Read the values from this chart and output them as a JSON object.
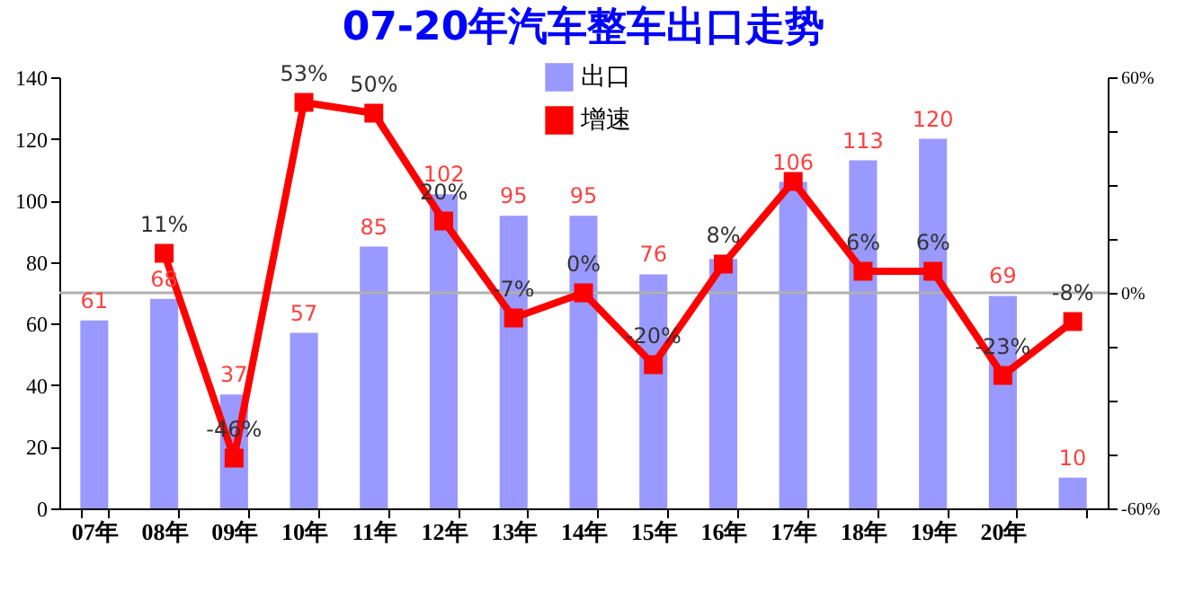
{
  "chart_data": {
    "type": "bar",
    "title": "07-20年汽车整车出口走势",
    "categories": [
      "07年",
      "08年",
      "09年",
      "10年",
      "11年",
      "12年",
      "13年",
      "14年",
      "15年",
      "16年",
      "17年",
      "18年",
      "19年",
      "20年",
      null
    ],
    "series": [
      {
        "name": "出口",
        "color": "#9999ff",
        "values": [
          61,
          68,
          37,
          57,
          85,
          102,
          95,
          95,
          76,
          81,
          106,
          113,
          120,
          69,
          10
        ],
        "value_labels": [
          "61",
          "68",
          "37",
          "57",
          "85",
          "102",
          "95",
          "95",
          "76",
          null,
          "106",
          "113",
          "120",
          "69",
          "10"
        ]
      },
      {
        "name": "增速",
        "type": "line",
        "axis": "y2",
        "color": "#ff0000",
        "marker": "square",
        "values": [
          null,
          11,
          -46,
          53,
          50,
          20,
          -7,
          0,
          -20,
          8,
          31,
          6,
          6,
          -23,
          -8
        ],
        "value_labels": [
          null,
          "11%",
          "-46%",
          "53%",
          "50%",
          "20%",
          "-7%",
          "0%",
          "-20%",
          "8%",
          null,
          "6%",
          "6%",
          "-23%",
          "-8%"
        ]
      }
    ],
    "ylim": [
      0,
      140
    ],
    "yticks": [
      0,
      20,
      40,
      60,
      80,
      100,
      120,
      140
    ],
    "y2lim": [
      -60,
      60
    ],
    "y2ticks": [
      {
        "value": -60,
        "label": "-60%"
      },
      {
        "value": -45,
        "label": null
      },
      {
        "value": -30,
        "label": null
      },
      {
        "value": -15,
        "label": null
      },
      {
        "value": 0,
        "label": "0%"
      },
      {
        "value": 15,
        "label": null
      },
      {
        "value": 30,
        "label": null
      },
      {
        "value": 45,
        "label": null
      },
      {
        "value": 60,
        "label": "60%"
      }
    ],
    "ref_lines": [
      {
        "axis": "y2",
        "value": 0,
        "color": "#b0b0b0"
      }
    ],
    "legend": "top",
    "grid": false
  }
}
